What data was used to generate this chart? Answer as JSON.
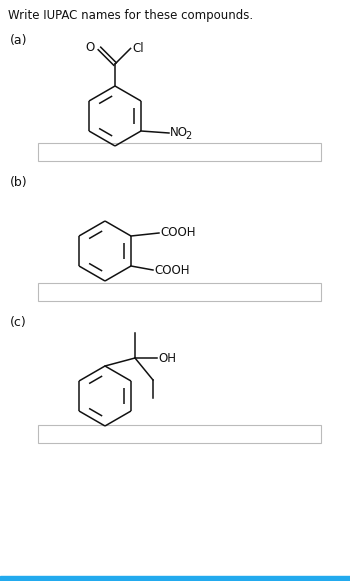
{
  "title": "Write IUPAC names for these compounds.",
  "title_fontsize": 8.5,
  "title_color": "#111111",
  "background_color": "#ffffff",
  "label_a": "(a)",
  "label_b": "(b)",
  "label_c": "(c)",
  "label_fontsize": 9,
  "bottom_bar_color": "#22aaee",
  "box_edgecolor": "#bbbbbb",
  "line_color": "#111111",
  "text_fontsize": 8.5,
  "sub_fontsize": 7.0
}
